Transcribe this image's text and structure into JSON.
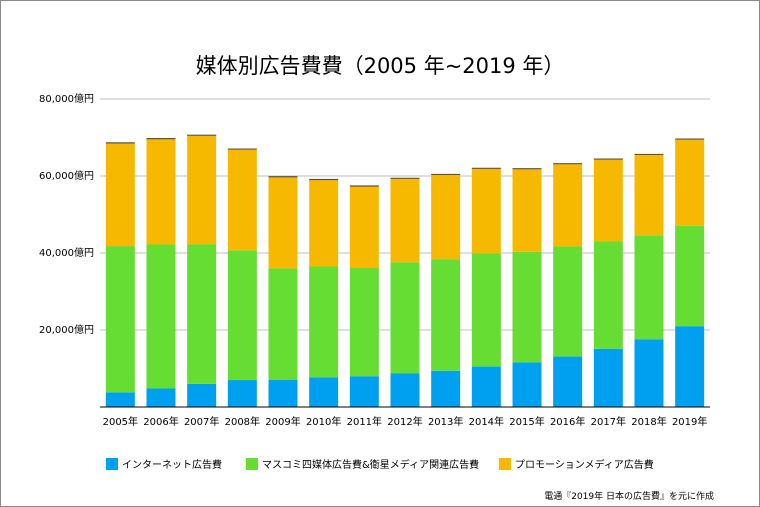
{
  "chart_data": {
    "type": "bar",
    "stacked": true,
    "title": "媒体別広告費費（2005 年~2019 年）",
    "categories": [
      "2005年",
      "2006年",
      "2007年",
      "2008年",
      "2009年",
      "2010年",
      "2011年",
      "2012年",
      "2013年",
      "2014年",
      "2015年",
      "2016年",
      "2017年",
      "2018年",
      "2019年"
    ],
    "series": [
      {
        "name": "インターネット広告費",
        "color": "#00a0f0",
        "values": [
          3800,
          4800,
          6000,
          7000,
          7100,
          7700,
          8000,
          8700,
          9400,
          10500,
          11600,
          13100,
          15100,
          17600,
          21000
        ]
      },
      {
        "name": "マスコミ四媒体広告費&衛星メディア関連広告費",
        "color": "#66dd33",
        "values": [
          38000,
          37400,
          36300,
          33700,
          28900,
          28800,
          28100,
          28900,
          29000,
          29400,
          28700,
          28600,
          27900,
          27000,
          26100
        ]
      },
      {
        "name": "プロモーションメディア広告費",
        "color": "#f7b900",
        "values": [
          26800,
          27500,
          28300,
          26300,
          23800,
          22600,
          21300,
          21800,
          22000,
          22100,
          21600,
          21500,
          21400,
          21000,
          22500
        ]
      }
    ],
    "yticks": [
      "",
      "20,000億円",
      "40,000億円",
      "60,000億円",
      "80,000億円"
    ],
    "ytick_values": [
      0,
      20000,
      40000,
      60000,
      80000
    ],
    "ylim": [
      0,
      80000
    ],
    "grid": true,
    "legend_position": "bottom"
  },
  "source": "電通『2019年 日本の広告費』を元に作成"
}
